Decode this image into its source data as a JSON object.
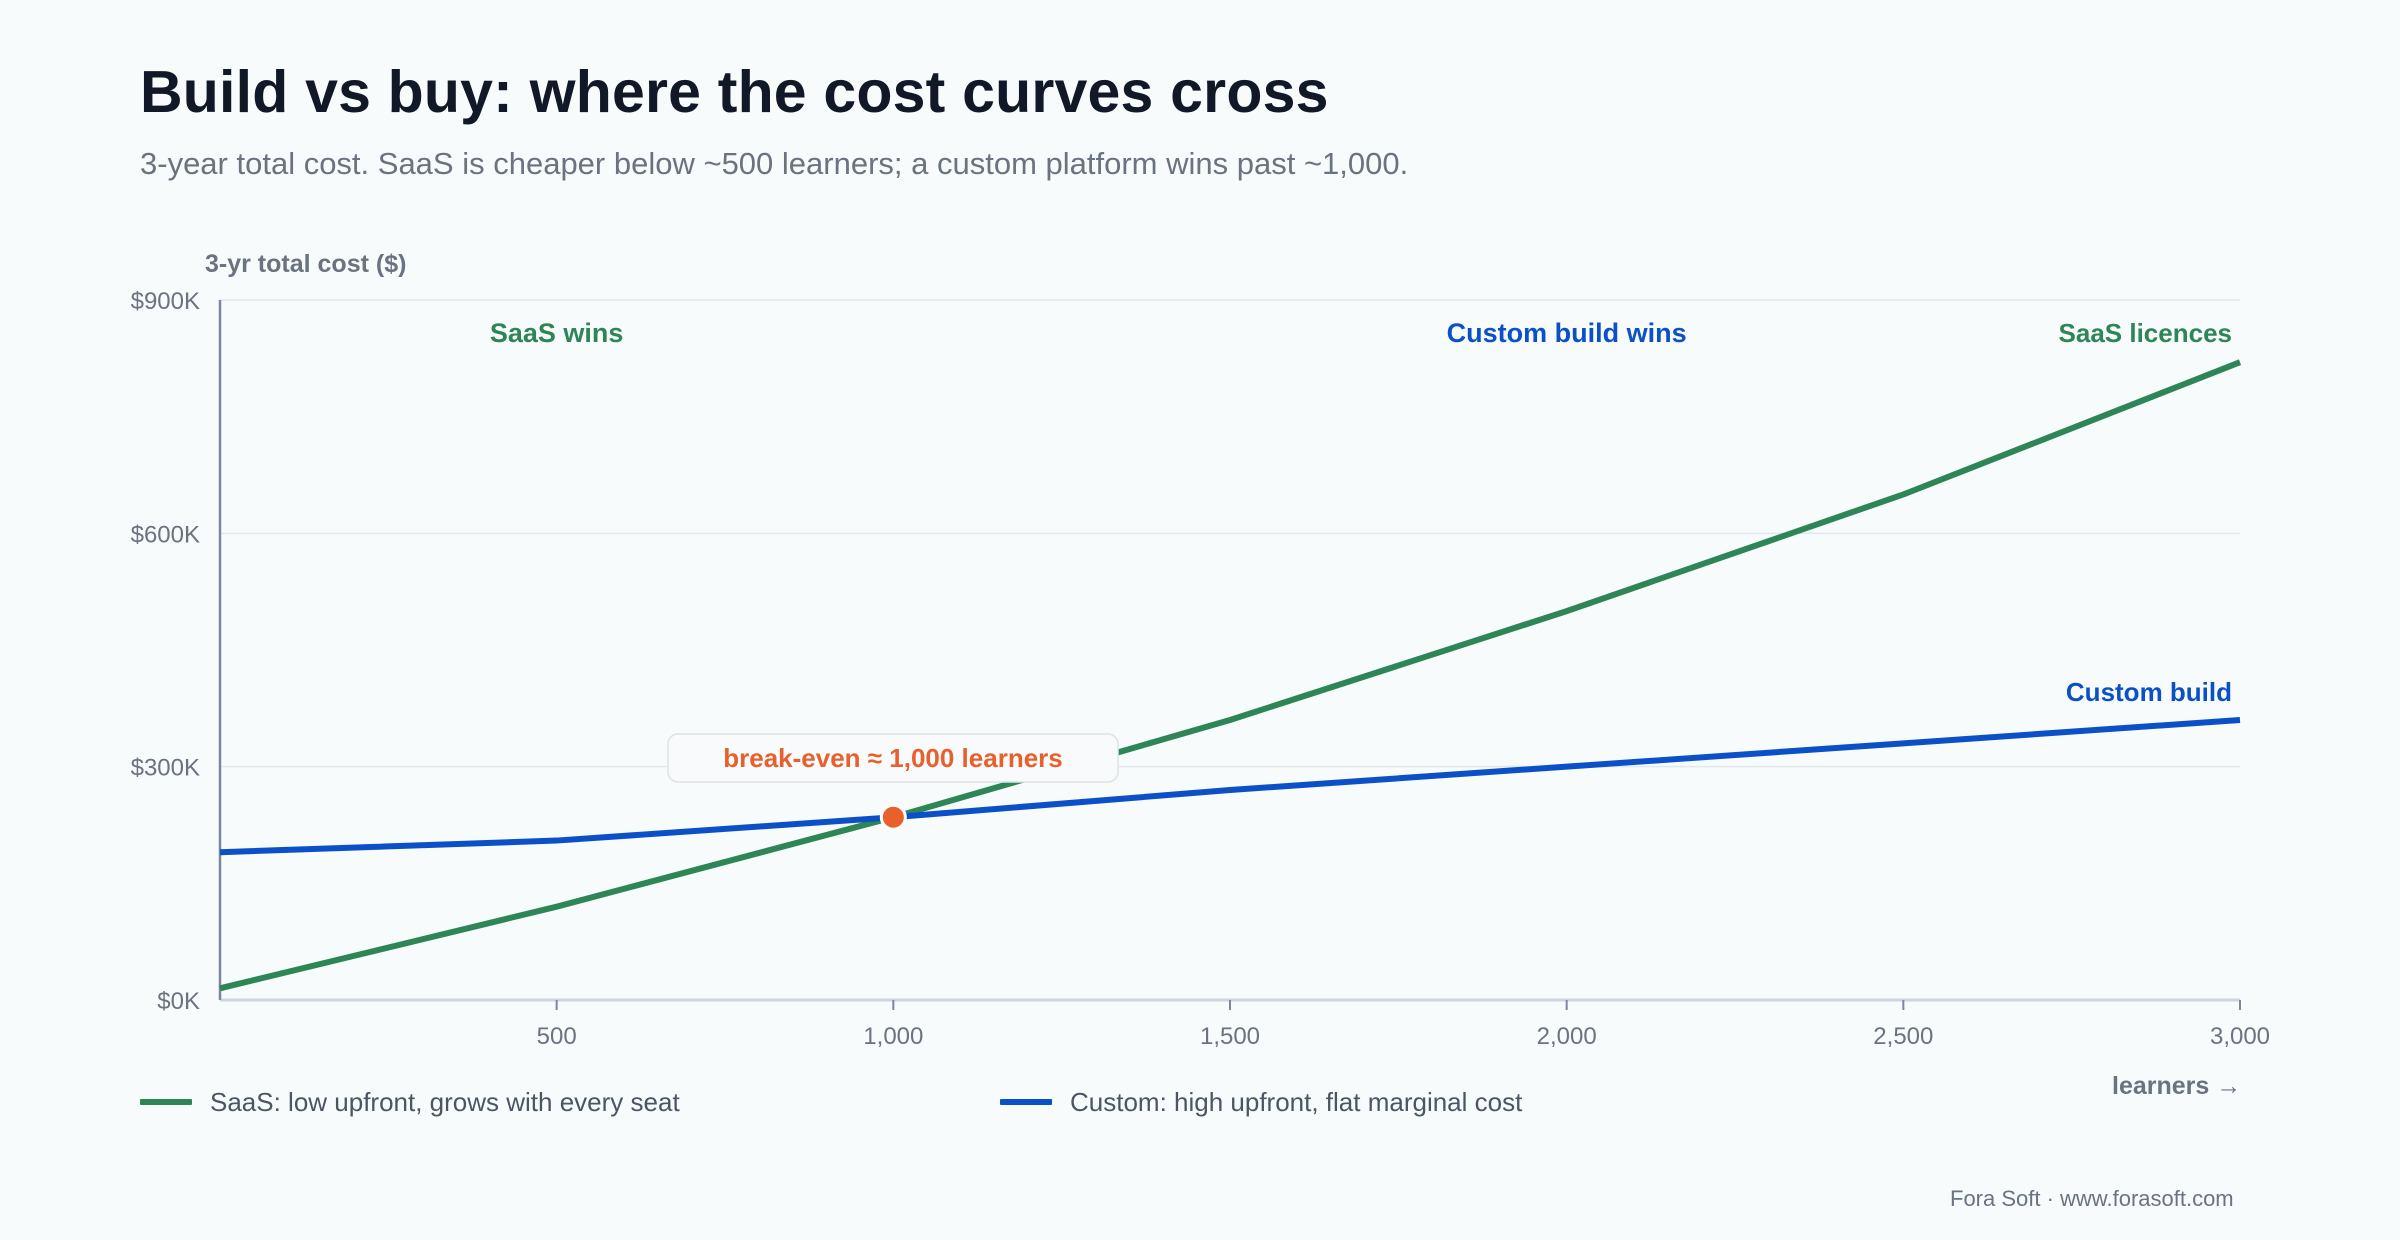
{
  "title": "Build vs buy: where the cost curves cross",
  "subtitle": "3-year total cost. SaaS is cheaper below ~500 learners; a custom platform wins past ~1,000.",
  "credit": "Fora Soft · www.forasoft.com",
  "chart_data": {
    "type": "line",
    "ylabel": "3-yr total cost ($)",
    "xlabel": "learners →",
    "xlim": [
      0,
      3000
    ],
    "ylim": [
      0,
      900000
    ],
    "x_ticks": [
      500,
      1000,
      1500,
      2000,
      2500,
      3000
    ],
    "x_tick_labels": [
      "500",
      "1,000",
      "1,500",
      "2,000",
      "2,500",
      "3,000"
    ],
    "y_ticks": [
      0,
      300000,
      600000,
      900000
    ],
    "y_tick_labels": [
      "$0K",
      "$300K",
      "$600K",
      "$900K"
    ],
    "grid": true,
    "series": [
      {
        "name": "SaaS licences",
        "legend": "SaaS: low upfront, grows with every seat",
        "color": "#2e8555",
        "x": [
          0,
          500,
          1000,
          1500,
          2000,
          2500,
          3000
        ],
        "y": [
          15000,
          120000,
          235000,
          360000,
          500000,
          650000,
          820000
        ]
      },
      {
        "name": "Custom build",
        "legend": "Custom: high upfront, flat marginal cost",
        "color": "#0b50c7",
        "x": [
          0,
          500,
          1000,
          1500,
          2000,
          2500,
          3000
        ],
        "y": [
          190000,
          205000,
          235000,
          270000,
          300000,
          330000,
          360000
        ]
      }
    ],
    "region_labels": [
      {
        "text": "SaaS wins",
        "color": "#2e8555",
        "x": 500
      },
      {
        "text": "Custom build wins",
        "color": "#0b50c7",
        "x": 2000
      }
    ],
    "annotation": {
      "text": "break-even ≈ 1,000 learners",
      "color": "#e8602c",
      "x": 1000,
      "y": 235000
    }
  }
}
